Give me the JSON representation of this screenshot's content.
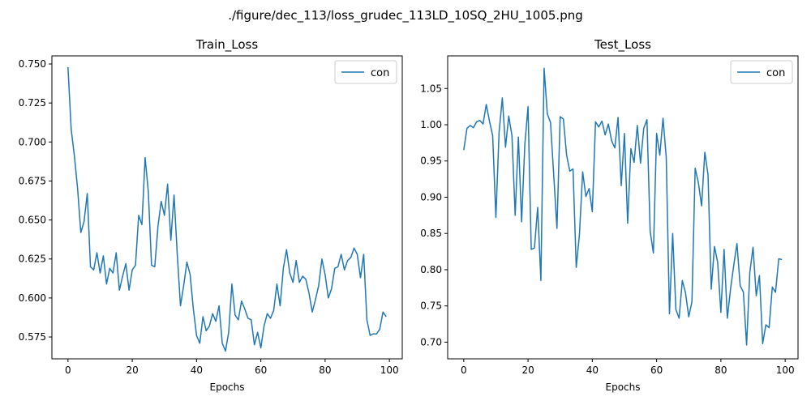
{
  "figure": {
    "suptitle": "./figure/dec_113/loss_grudec_113LD_10SQ_2HU_1005.png"
  },
  "chart_data": [
    {
      "type": "line",
      "title": "Train_Loss",
      "xlabel": "Epochs",
      "ylabel": "",
      "xlim": [
        -5,
        104
      ],
      "ylim": [
        0.561,
        0.7552
      ],
      "xticks": [
        0,
        20,
        40,
        60,
        80,
        100
      ],
      "yticks": [
        0.575,
        0.6,
        0.625,
        0.65,
        0.675,
        0.7,
        0.725,
        0.75
      ],
      "ytick_labels": [
        "0.575",
        "0.600",
        "0.625",
        "0.650",
        "0.675",
        "0.700",
        "0.725",
        "0.750"
      ],
      "xtick_labels": [
        "0",
        "20",
        "40",
        "60",
        "80",
        "100"
      ],
      "legend": {
        "position": "top-right",
        "entries": [
          "con"
        ]
      },
      "series": [
        {
          "name": "con",
          "color": "#1f77b4",
          "values": [
            0.748,
            0.708,
            0.691,
            0.67,
            0.642,
            0.649,
            0.667,
            0.62,
            0.618,
            0.629,
            0.616,
            0.627,
            0.609,
            0.619,
            0.616,
            0.629,
            0.605,
            0.614,
            0.622,
            0.605,
            0.618,
            0.621,
            0.653,
            0.647,
            0.69,
            0.668,
            0.621,
            0.62,
            0.646,
            0.662,
            0.653,
            0.673,
            0.637,
            0.666,
            0.628,
            0.595,
            0.608,
            0.623,
            0.615,
            0.593,
            0.576,
            0.571,
            0.588,
            0.579,
            0.582,
            0.59,
            0.585,
            0.595,
            0.571,
            0.566,
            0.578,
            0.609,
            0.589,
            0.586,
            0.598,
            0.593,
            0.587,
            0.586,
            0.57,
            0.578,
            0.568,
            0.582,
            0.59,
            0.587,
            0.592,
            0.609,
            0.595,
            0.619,
            0.631,
            0.616,
            0.61,
            0.624,
            0.61,
            0.614,
            0.612,
            0.603,
            0.591,
            0.599,
            0.608,
            0.625,
            0.615,
            0.6,
            0.606,
            0.619,
            0.62,
            0.628,
            0.618,
            0.624,
            0.626,
            0.632,
            0.628,
            0.613,
            0.628,
            0.586,
            0.576,
            0.577,
            0.577,
            0.58,
            0.591,
            0.588
          ]
        }
      ]
    },
    {
      "type": "line",
      "title": "Test_Loss",
      "xlabel": "Epochs",
      "ylabel": "",
      "xlim": [
        -5,
        104
      ],
      "ylim": [
        0.677,
        1.095
      ],
      "xticks": [
        0,
        20,
        40,
        60,
        80,
        100
      ],
      "yticks": [
        0.7,
        0.75,
        0.8,
        0.85,
        0.9,
        0.95,
        1.0,
        1.05
      ],
      "ytick_labels": [
        "0.70",
        "0.75",
        "0.80",
        "0.85",
        "0.90",
        "0.95",
        "1.00",
        "1.05"
      ],
      "xtick_labels": [
        "0",
        "20",
        "40",
        "60",
        "80",
        "100"
      ],
      "legend": {
        "position": "top-right",
        "entries": [
          "con"
        ]
      },
      "series": [
        {
          "name": "con",
          "color": "#1f77b4",
          "values": [
            0.965,
            0.995,
            0.999,
            0.996,
            1.004,
            1.006,
            1.001,
            1.028,
            1.005,
            0.985,
            0.872,
            0.99,
            1.037,
            0.969,
            1.012,
            0.985,
            0.875,
            0.983,
            0.866,
            0.972,
            1.025,
            0.828,
            0.83,
            0.886,
            0.785,
            1.078,
            1.015,
            1.003,
            0.93,
            0.857,
            1.011,
            1.008,
            0.958,
            0.936,
            0.939,
            0.803,
            0.849,
            0.935,
            0.901,
            0.912,
            0.88,
            1.004,
            0.997,
            1.005,
            0.986,
            1.001,
            0.978,
            0.968,
            1.01,
            0.916,
            0.988,
            0.864,
            0.967,
            0.948,
            0.999,
            0.947,
            0.995,
            1.007,
            0.853,
            0.823,
            0.988,
            0.958,
            1.009,
            0.955,
            0.739,
            0.85,
            0.745,
            0.733,
            0.785,
            0.768,
            0.735,
            0.756,
            0.94,
            0.92,
            0.888,
            0.962,
            0.931,
            0.773,
            0.832,
            0.81,
            0.741,
            0.828,
            0.733,
            0.773,
            0.806,
            0.836,
            0.778,
            0.769,
            0.696,
            0.796,
            0.831,
            0.764,
            0.792,
            0.698,
            0.724,
            0.72,
            0.776,
            0.769,
            0.815,
            0.814
          ]
        }
      ]
    }
  ]
}
